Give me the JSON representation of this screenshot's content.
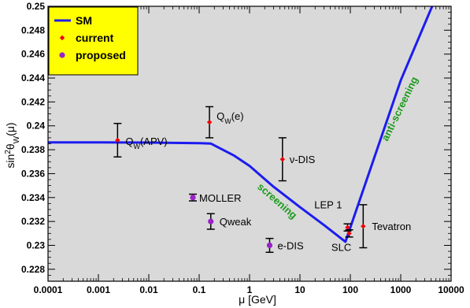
{
  "chart_data": {
    "type": "scatter",
    "xlabel": "μ [GeV]",
    "ylabel": "sin²θ_W(μ)",
    "x_scale": "log",
    "xlim": [
      0.0001,
      10000
    ],
    "ylim": [
      0.227,
      0.25
    ],
    "grid": false,
    "legend_position": "top-left",
    "x_ticks": [
      {
        "value": 0.0001,
        "label": "0.0001"
      },
      {
        "value": 0.001,
        "label": "0.001"
      },
      {
        "value": 0.01,
        "label": "0.01"
      },
      {
        "value": 0.1,
        "label": "0.1"
      },
      {
        "value": 1,
        "label": "1"
      },
      {
        "value": 10,
        "label": "10"
      },
      {
        "value": 100,
        "label": "100"
      },
      {
        "value": 1000,
        "label": "1000"
      },
      {
        "value": 10000,
        "label": "10000"
      }
    ],
    "y_ticks": [
      {
        "value": 0.228,
        "label": "0.228"
      },
      {
        "value": 0.23,
        "label": "0.23"
      },
      {
        "value": 0.232,
        "label": "0.232"
      },
      {
        "value": 0.234,
        "label": "0.234"
      },
      {
        "value": 0.236,
        "label": "0.236"
      },
      {
        "value": 0.238,
        "label": "0.238"
      },
      {
        "value": 0.24,
        "label": "0.24"
      },
      {
        "value": 0.242,
        "label": "0.242"
      },
      {
        "value": 0.244,
        "label": "0.244"
      },
      {
        "value": 0.246,
        "label": "0.246"
      },
      {
        "value": 0.248,
        "label": "0.248"
      },
      {
        "value": 0.25,
        "label": "0.25"
      }
    ],
    "series": [
      {
        "name": "SM",
        "kind": "line",
        "color": "#1c1cf0",
        "points": [
          {
            "x": 0.0001,
            "y": 0.23862
          },
          {
            "x": 0.001,
            "y": 0.23862
          },
          {
            "x": 0.01,
            "y": 0.2386
          },
          {
            "x": 0.1,
            "y": 0.23855
          },
          {
            "x": 0.17,
            "y": 0.23852
          },
          {
            "x": 0.5,
            "y": 0.2375
          },
          {
            "x": 1,
            "y": 0.23665
          },
          {
            "x": 3,
            "y": 0.2349
          },
          {
            "x": 10,
            "y": 0.2332
          },
          {
            "x": 30,
            "y": 0.2317
          },
          {
            "x": 80,
            "y": 0.2303
          },
          {
            "x": 1000,
            "y": 0.2438
          },
          {
            "x": 4200,
            "y": 0.25
          }
        ]
      },
      {
        "name": "current",
        "kind": "points",
        "color": "#ee0000",
        "points": [
          {
            "label": "Q_W(APV)",
            "x": 0.0024,
            "y": 0.2388,
            "err": 0.0014
          },
          {
            "label": "Q_W(e)",
            "x": 0.16,
            "y": 0.2403,
            "err": 0.0013
          },
          {
            "label": "ν-DIS",
            "x": 4.5,
            "y": 0.2372,
            "err": 0.0018
          },
          {
            "label": "LEP 1",
            "x": 88,
            "y": 0.2315,
            "err": 0.0003
          },
          {
            "label": "SLC",
            "x": 95,
            "y": 0.231,
            "err": 0.0003
          },
          {
            "label": "Tevatron",
            "x": 180,
            "y": 0.2316,
            "err": 0.0018
          }
        ]
      },
      {
        "name": "proposed",
        "kind": "points",
        "color": "#9a22c8",
        "points": [
          {
            "label": "MOLLER",
            "x": 0.075,
            "y": 0.234,
            "err": 0.00028
          },
          {
            "label": "Qweak",
            "x": 0.17,
            "y": 0.232,
            "err": 0.00065
          },
          {
            "label": "e-DIS",
            "x": 2.5,
            "y": 0.23,
            "err": 0.00058
          }
        ]
      }
    ],
    "annotations": [
      {
        "text": "screening",
        "color": "#1a9a1a",
        "x": 3.2,
        "y": 0.2335
      },
      {
        "text": "anti-screening",
        "color": "#1a9a1a",
        "x": 1100,
        "y": 0.2413
      }
    ],
    "legend": [
      {
        "name": "SM",
        "marker": "line",
        "color": "#1c1cf0"
      },
      {
        "name": "current",
        "marker": "dot",
        "color": "#ee0000"
      },
      {
        "name": "proposed",
        "marker": "dot",
        "color": "#9a22c8"
      }
    ],
    "colors": {
      "plot_background": "#d9d9d9",
      "legend_background": "#ffff00"
    }
  }
}
